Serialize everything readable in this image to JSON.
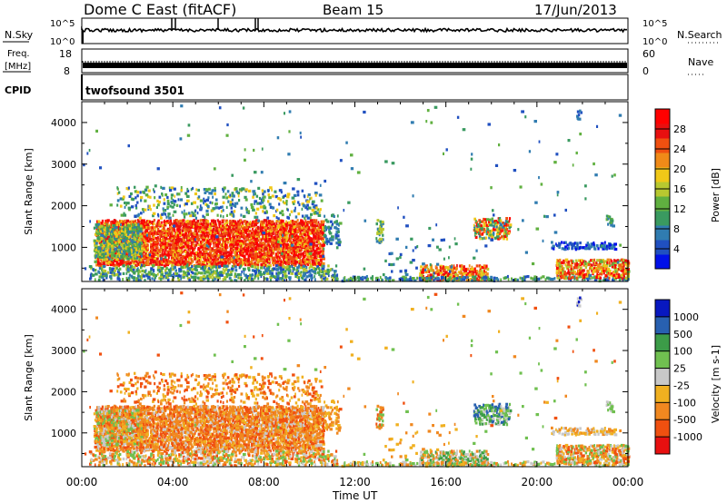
{
  "header": {
    "station": "Dome C East (fitACF)",
    "beam": "Beam 15",
    "date": "17/Jun/2013"
  },
  "strips": {
    "nsky_label": "N.Sky",
    "nsky_ticks": [
      "10^5",
      "10^0"
    ],
    "nsearch_label": "N.Search",
    "freq_label_top": "Freq.",
    "freq_label_bottom": "[MHz]",
    "freq_ticks": [
      "18",
      "8"
    ],
    "nave_label": "Nave",
    "nave_ticks": [
      "60",
      "0"
    ],
    "cpid_label": "CPID",
    "cpid_value": "twofsound 3501"
  },
  "chart_data": [
    {
      "type": "heatmap",
      "name": "power",
      "ylabel": "Slant Range [km]",
      "xlabel": "",
      "x_ticks": [
        "00:00",
        "04:00",
        "08:00",
        "12:00",
        "16:00",
        "20:00",
        "00:00"
      ],
      "x_range_hours": [
        0,
        24
      ],
      "y_ticks": [
        1000,
        2000,
        3000,
        4000
      ],
      "y_range_km": [
        180,
        4500
      ],
      "colorbar": {
        "label": "Power [dB]",
        "ticks": [
          "4",
          "8",
          "12",
          "16",
          "20",
          "24",
          "28"
        ],
        "colors": [
          "#0010e8",
          "#2050c0",
          "#307cb0",
          "#3a9a60",
          "#60b040",
          "#b8c830",
          "#f0c818",
          "#f08a18",
          "#f05010",
          "#e81010",
          "#ff0000"
        ]
      }
    },
    {
      "type": "heatmap",
      "name": "velocity",
      "ylabel": "Slant Range [km]",
      "xlabel": "Time UT",
      "x_ticks": [
        "00:00",
        "04:00",
        "08:00",
        "12:00",
        "16:00",
        "20:00",
        "00:00"
      ],
      "x_range_hours": [
        0,
        24
      ],
      "y_ticks": [
        1000,
        2000,
        3000,
        4000
      ],
      "y_range_km": [
        180,
        4500
      ],
      "colorbar": {
        "label": "Velocity [m s-1]",
        "ticks": [
          "1000",
          "500",
          "100",
          "25",
          "-25",
          "-100",
          "-500",
          "-1000"
        ],
        "colors": [
          "#0818c0",
          "#2860b0",
          "#3c9c48",
          "#70c050",
          "#c8c8c8",
          "#f0b020",
          "#f08820",
          "#f05010",
          "#e81010"
        ]
      }
    }
  ]
}
